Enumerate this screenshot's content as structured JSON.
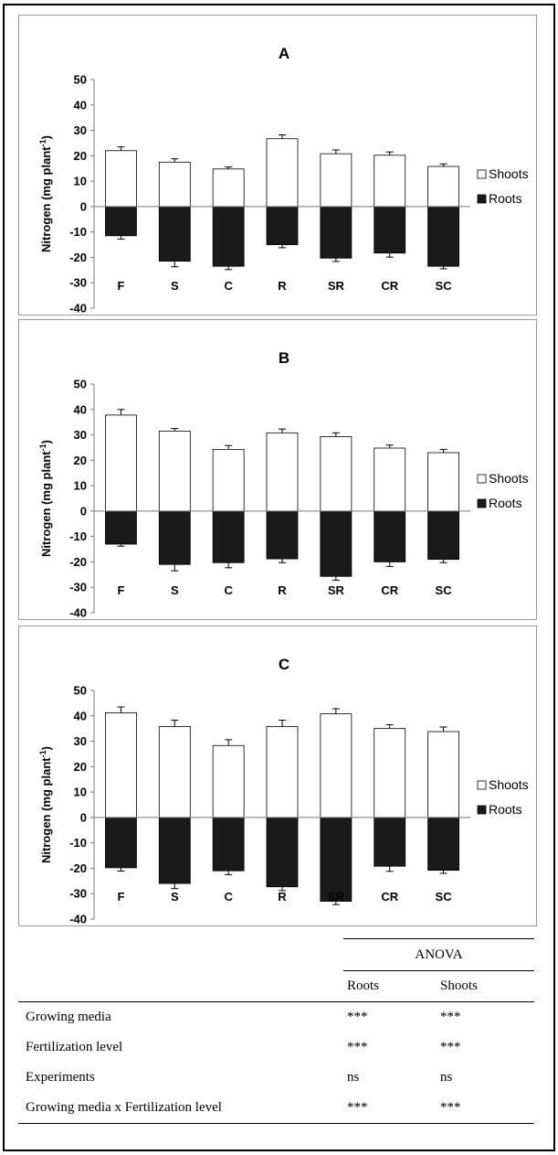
{
  "chart_data": [
    {
      "type": "bar",
      "title": "A",
      "ylabel": "Nitrogen (mg plant-1)",
      "ylabel_main": "Nitrogen (mg plant",
      "ylabel_sup": "-1",
      "ylabel_close": ")",
      "ylim": [
        -40,
        50
      ],
      "yticks": [
        "50",
        "40",
        "30",
        "20",
        "10",
        "0",
        "-10",
        "-20",
        "-30",
        "-40"
      ],
      "categories": [
        "F",
        "S",
        "C",
        "R",
        "SR",
        "CR",
        "SC"
      ],
      "series": [
        {
          "name": "Shoots",
          "values": [
            22,
            17.5,
            14.8,
            26.7,
            20.8,
            20.2,
            15.8
          ],
          "errors": [
            1.5,
            1.3,
            0.8,
            1.5,
            1.5,
            1.3,
            1.0
          ]
        },
        {
          "name": "Roots",
          "values": [
            -11.5,
            -21.5,
            -23.5,
            -15,
            -20.3,
            -18.3,
            -23.5
          ],
          "errors": [
            1.3,
            2.2,
            1.3,
            1.2,
            1.3,
            1.6,
            1.0
          ]
        }
      ],
      "legend": [
        "Shoots",
        "Roots"
      ],
      "legend_position": "right",
      "grid": false
    },
    {
      "type": "bar",
      "title": "B",
      "ylabel": "Nitrogen (mg plant-1)",
      "ylabel_main": "Nitrogen (mg plant",
      "ylabel_sup": "-1",
      "ylabel_close": ")",
      "ylim": [
        -40,
        50
      ],
      "yticks": [
        "50",
        "40",
        "30",
        "20",
        "10",
        "0",
        "-10",
        "-20",
        "-30",
        "-40"
      ],
      "categories": [
        "F",
        "S",
        "C",
        "R",
        "SR",
        "CR",
        "SC"
      ],
      "series": [
        {
          "name": "Shoots",
          "values": [
            37.8,
            31.5,
            24.3,
            30.8,
            29.3,
            24.8,
            23
          ],
          "errors": [
            2.2,
            1.0,
            1.5,
            1.5,
            1.5,
            1.2,
            1.3
          ]
        },
        {
          "name": "Roots",
          "values": [
            -13,
            -21,
            -20.3,
            -18.8,
            -25.7,
            -20,
            -19
          ],
          "errors": [
            0.8,
            2.5,
            2.0,
            1.5,
            1.5,
            1.8,
            1.3
          ]
        }
      ],
      "legend": [
        "Shoots",
        "Roots"
      ],
      "legend_position": "right",
      "grid": false
    },
    {
      "type": "bar",
      "title": "C",
      "ylabel": "Nitrogen (mg plant-1)",
      "ylabel_main": "Nitrogen (mg plant",
      "ylabel_sup": "-1",
      "ylabel_close": ")",
      "ylim": [
        -40,
        50
      ],
      "yticks": [
        "50",
        "40",
        "30",
        "20",
        "10",
        "0",
        "-10",
        "-20",
        "-30",
        "-40"
      ],
      "categories": [
        "F",
        "S",
        "C",
        "R",
        "SR",
        "CR",
        "SC"
      ],
      "series": [
        {
          "name": "Shoots",
          "values": [
            41.2,
            35.8,
            28.3,
            35.8,
            40.8,
            35,
            33.8
          ],
          "errors": [
            2.3,
            2.5,
            2.3,
            2.5,
            2.0,
            1.5,
            1.8
          ]
        },
        {
          "name": "Roots",
          "values": [
            -19.8,
            -26,
            -21,
            -27.3,
            -33,
            -19.2,
            -20.8
          ],
          "errors": [
            1.3,
            2.0,
            1.5,
            1.5,
            1.3,
            2.0,
            1.2
          ]
        }
      ],
      "legend": [
        "Shoots",
        "Roots"
      ],
      "legend_position": "right",
      "grid": false
    }
  ],
  "colors": {
    "shoots": "#ffffff",
    "roots": "#1a1a1a",
    "axis": "#777777"
  },
  "anova": {
    "group_header": "ANOVA",
    "columns": [
      "Roots",
      "Shoots"
    ],
    "rows": [
      {
        "factor": "Growing media",
        "roots": "***",
        "shoots": "***"
      },
      {
        "factor": "Fertilization level",
        "roots": "***",
        "shoots": "***"
      },
      {
        "factor": "Experiments",
        "roots": "ns",
        "shoots": "ns"
      },
      {
        "factor": "Growing media x Fertilization level",
        "roots": "***",
        "shoots": "***"
      }
    ]
  }
}
